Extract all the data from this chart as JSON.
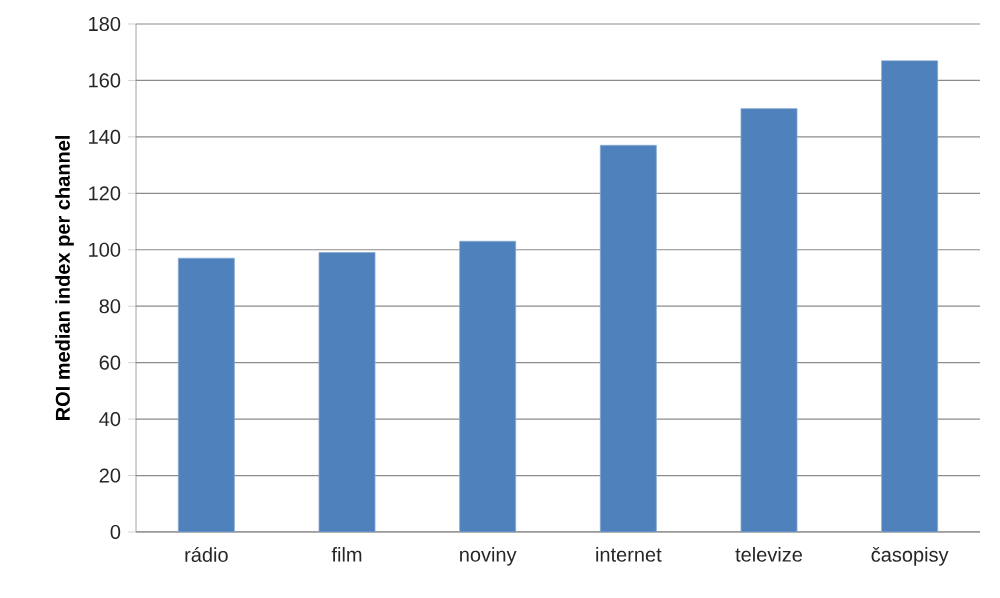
{
  "chart_data": {
    "type": "bar",
    "ylabel": "ROI median index per channel",
    "categories": [
      "rádio",
      "film",
      "noviny",
      "internet",
      "televize",
      "časopisy"
    ],
    "values": [
      97,
      99,
      103,
      137,
      150,
      167
    ],
    "color": "#4f81bd",
    "ylim": [
      0,
      180
    ],
    "yticks": [
      0,
      20,
      40,
      60,
      80,
      100,
      120,
      140,
      160,
      180
    ],
    "grid": "y"
  }
}
